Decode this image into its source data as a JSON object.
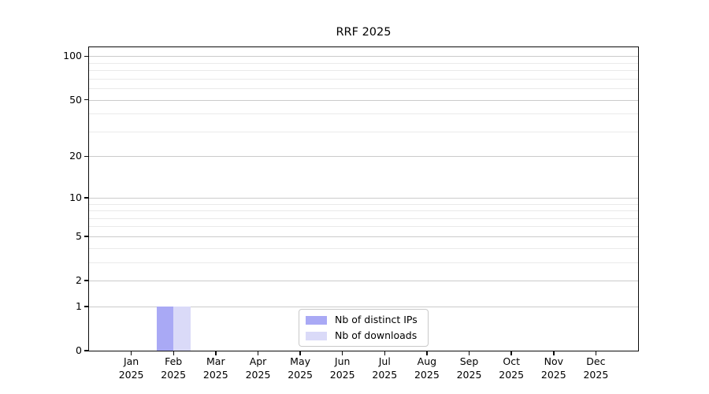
{
  "chart_data": {
    "type": "bar",
    "title": "RRF 2025",
    "categories": [
      "Jan",
      "Feb",
      "Mar",
      "Apr",
      "May",
      "Jun",
      "Jul",
      "Aug",
      "Sep",
      "Oct",
      "Nov",
      "Dec"
    ],
    "category_year": "2025",
    "series": [
      {
        "name": "Nb of distinct IPs",
        "color": "#a9a9f5",
        "values": [
          0,
          1,
          0,
          0,
          0,
          0,
          0,
          0,
          0,
          0,
          0,
          0
        ]
      },
      {
        "name": "Nb of downloads",
        "color": "#dadaf8",
        "values": [
          0,
          1,
          0,
          0,
          0,
          0,
          0,
          0,
          0,
          0,
          0,
          0
        ]
      }
    ],
    "yscale": "log1p",
    "ylim": [
      0,
      115
    ],
    "yticks": [
      0,
      1,
      2,
      5,
      10,
      20,
      50,
      100
    ],
    "yticks_minor": [
      3,
      4,
      6,
      7,
      8,
      9,
      30,
      40,
      60,
      70,
      80,
      90
    ],
    "grid": {
      "axis": "y",
      "major": true,
      "minor": true
    },
    "legend": {
      "position": "lower center",
      "inside": true
    },
    "colors": {
      "grid_major": "#cbcbcb",
      "grid_minor": "#eaeaea",
      "spine": "#0a0a0a",
      "text": "#000000"
    }
  }
}
